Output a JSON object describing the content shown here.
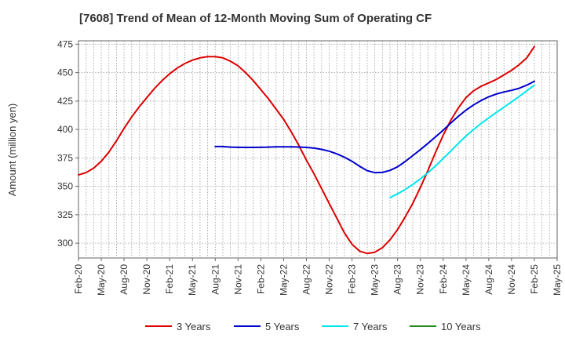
{
  "chart_data": {
    "type": "line",
    "title": "[7608]  Trend of Mean of 12-Month Moving Sum of Operating CF",
    "xlabel": "",
    "ylabel": "Amount (million yen)",
    "ylim": [
      287,
      478
    ],
    "yticks": [
      300,
      325,
      350,
      375,
      400,
      425,
      450,
      475
    ],
    "x_range": [
      0,
      63
    ],
    "xticks": [
      "Feb-20",
      "May-20",
      "Aug-20",
      "Nov-20",
      "Feb-21",
      "May-21",
      "Aug-21",
      "Nov-21",
      "Feb-22",
      "May-22",
      "Aug-22",
      "Nov-22",
      "Feb-23",
      "May-23",
      "Aug-23",
      "Nov-23",
      "Feb-24",
      "May-24",
      "Aug-24",
      "Nov-24",
      "Feb-25",
      "May-25"
    ],
    "grid": true,
    "legend_position": "bottom",
    "series": [
      {
        "name": "3 Years",
        "color": "#dd0000",
        "x": [
          0,
          1,
          2,
          3,
          4,
          5,
          6,
          7,
          8,
          9,
          10,
          11,
          12,
          13,
          14,
          15,
          16,
          17,
          18,
          19,
          20,
          21,
          22,
          23,
          24,
          25,
          26,
          27,
          28,
          29,
          30,
          31,
          32,
          33,
          34,
          35,
          36,
          37,
          38,
          39,
          40,
          41,
          42,
          43,
          44,
          45,
          46,
          47,
          48,
          49,
          50,
          51,
          52,
          53,
          54,
          55,
          56,
          57,
          58,
          59,
          60
        ],
        "values": [
          360,
          362,
          366,
          372,
          380,
          390,
          401,
          411,
          420,
          428,
          436,
          443,
          449,
          454,
          458,
          461,
          463,
          464,
          464,
          463,
          460,
          456,
          450,
          443,
          435,
          427,
          418,
          409,
          398,
          386,
          373,
          361,
          348,
          335,
          322,
          309,
          299,
          293,
          291,
          292,
          296,
          303,
          312,
          323,
          335,
          349,
          364,
          380,
          395,
          408,
          419,
          428,
          434,
          438,
          441,
          444,
          448,
          452,
          457,
          463,
          473
        ]
      },
      {
        "name": "5 Years",
        "color": "#0000cc",
        "x": [
          18,
          19,
          20,
          21,
          22,
          23,
          24,
          25,
          26,
          27,
          28,
          29,
          30,
          31,
          32,
          33,
          34,
          35,
          36,
          37,
          38,
          39,
          40,
          41,
          42,
          43,
          44,
          45,
          46,
          47,
          48,
          49,
          50,
          51,
          52,
          53,
          54,
          55,
          56,
          57,
          58,
          59,
          60
        ],
        "values": [
          385,
          385,
          384.5,
          384.3,
          384.2,
          384.2,
          384.3,
          384.5,
          384.7,
          384.8,
          384.8,
          384.6,
          384.2,
          383.6,
          382.5,
          380.9,
          378.6,
          375.6,
          372,
          367.6,
          363.8,
          362,
          362.2,
          364,
          367.2,
          371.8,
          377,
          382.3,
          387.8,
          393.5,
          399.4,
          405.6,
          411.6,
          417,
          421.6,
          425.5,
          428.8,
          431.2,
          433,
          434.4,
          436.2,
          439,
          442.4
        ]
      },
      {
        "name": "7 Years",
        "color": "#00e5ee",
        "x": [
          41,
          42,
          43,
          44,
          45,
          46,
          47,
          48,
          49,
          50,
          51,
          52,
          53,
          54,
          55,
          56,
          57,
          58,
          59,
          60
        ],
        "values": [
          340,
          343.4,
          347.2,
          351.6,
          356.6,
          362,
          368,
          374.4,
          381,
          387.8,
          394.2,
          400,
          405.3,
          410.2,
          415,
          419.6,
          424.2,
          429,
          434,
          439
        ]
      },
      {
        "name": "10 Years",
        "color": "#228b22",
        "x": [],
        "values": []
      }
    ]
  }
}
